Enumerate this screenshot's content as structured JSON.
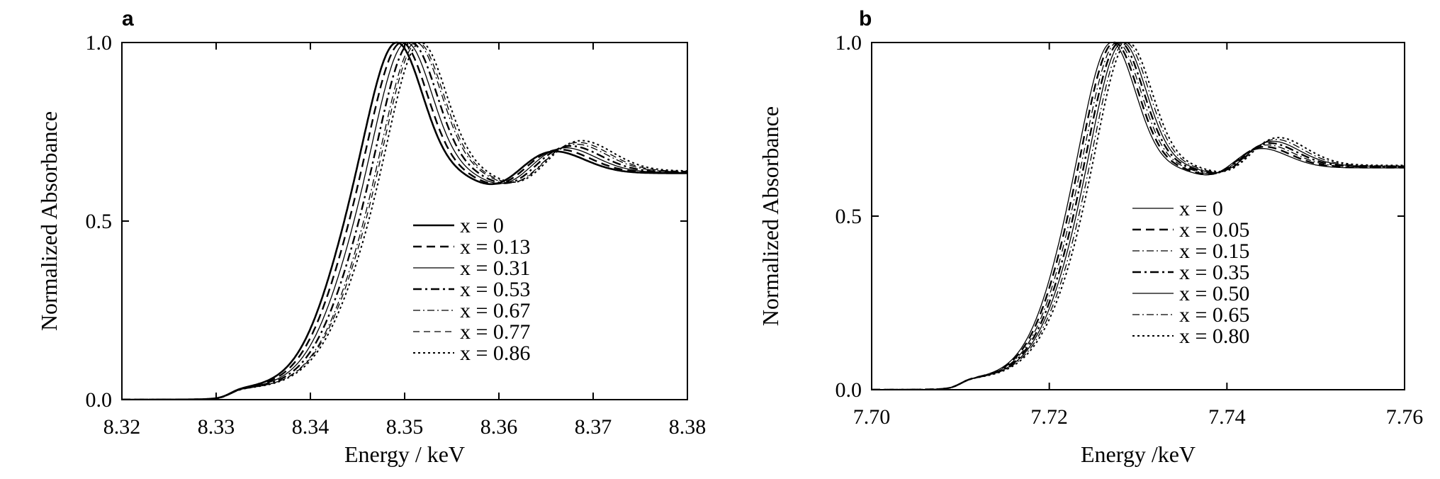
{
  "chart_data": [
    {
      "type": "line",
      "panel_label": "a",
      "xlabel": "Energy / keV",
      "ylabel": "Normalized Absorbance",
      "xlim": [
        8.32,
        8.38
      ],
      "ylim": [
        0.0,
        1.0
      ],
      "xticks": [
        "8.32",
        "8.33",
        "8.34",
        "8.35",
        "8.36",
        "8.37",
        "8.38"
      ],
      "yticks": [
        "0.0",
        "0.5",
        "1.0"
      ],
      "legend_position": "center-right",
      "grid": false,
      "params": {
        "e0": 8.342,
        "peak": 8.349,
        "hump": 8.3655,
        "valley": 8.36,
        "dshift": 0.0004
      },
      "series": [
        {
          "name": "x = 0",
          "style": "solid-bold",
          "shift": 0.0
        },
        {
          "name": "x = 0.13",
          "style": "dashed-bold",
          "shift": 0.0005
        },
        {
          "name": "x = 0.31",
          "style": "solid-thin",
          "shift": 0.001
        },
        {
          "name": "x = 0.53",
          "style": "dashdot-bold",
          "shift": 0.0015
        },
        {
          "name": "x = 0.67",
          "style": "dashdot-thin",
          "shift": 0.002
        },
        {
          "name": "x = 0.77",
          "style": "dashed-thin",
          "shift": 0.0022
        },
        {
          "name": "x = 0.86",
          "style": "dotted",
          "shift": 0.0025
        }
      ]
    },
    {
      "type": "line",
      "panel_label": "b",
      "xlabel": "Energy /keV",
      "ylabel": "Normalized Absorbance",
      "xlim": [
        7.7,
        7.76
      ],
      "ylim": [
        0.0,
        1.0
      ],
      "xticks": [
        "7.70",
        "7.72",
        "7.74",
        "7.76"
      ],
      "yticks": [
        "0.0",
        "0.5",
        "1.0"
      ],
      "legend_position": "center-right",
      "grid": false,
      "params": {
        "e0": 7.7205,
        "peak": 7.7268,
        "hump": 7.743,
        "valley": 7.739,
        "dshift": 0.0003
      },
      "series": [
        {
          "name": "x = 0",
          "style": "solid-thin",
          "shift": 0.0
        },
        {
          "name": "x = 0.05",
          "style": "dashed-bold",
          "shift": 0.0003
        },
        {
          "name": "x = 0.15",
          "style": "dashdot-thin",
          "shift": 0.0006
        },
        {
          "name": "x = 0.35",
          "style": "dashdot-bold",
          "shift": 0.0009
        },
        {
          "name": "x = 0.50",
          "style": "solid-thin",
          "shift": 0.0012
        },
        {
          "name": "x = 0.65",
          "style": "dashdot-thin",
          "shift": 0.0015
        },
        {
          "name": "x = 0.80",
          "style": "dotted",
          "shift": 0.0018
        }
      ]
    }
  ]
}
